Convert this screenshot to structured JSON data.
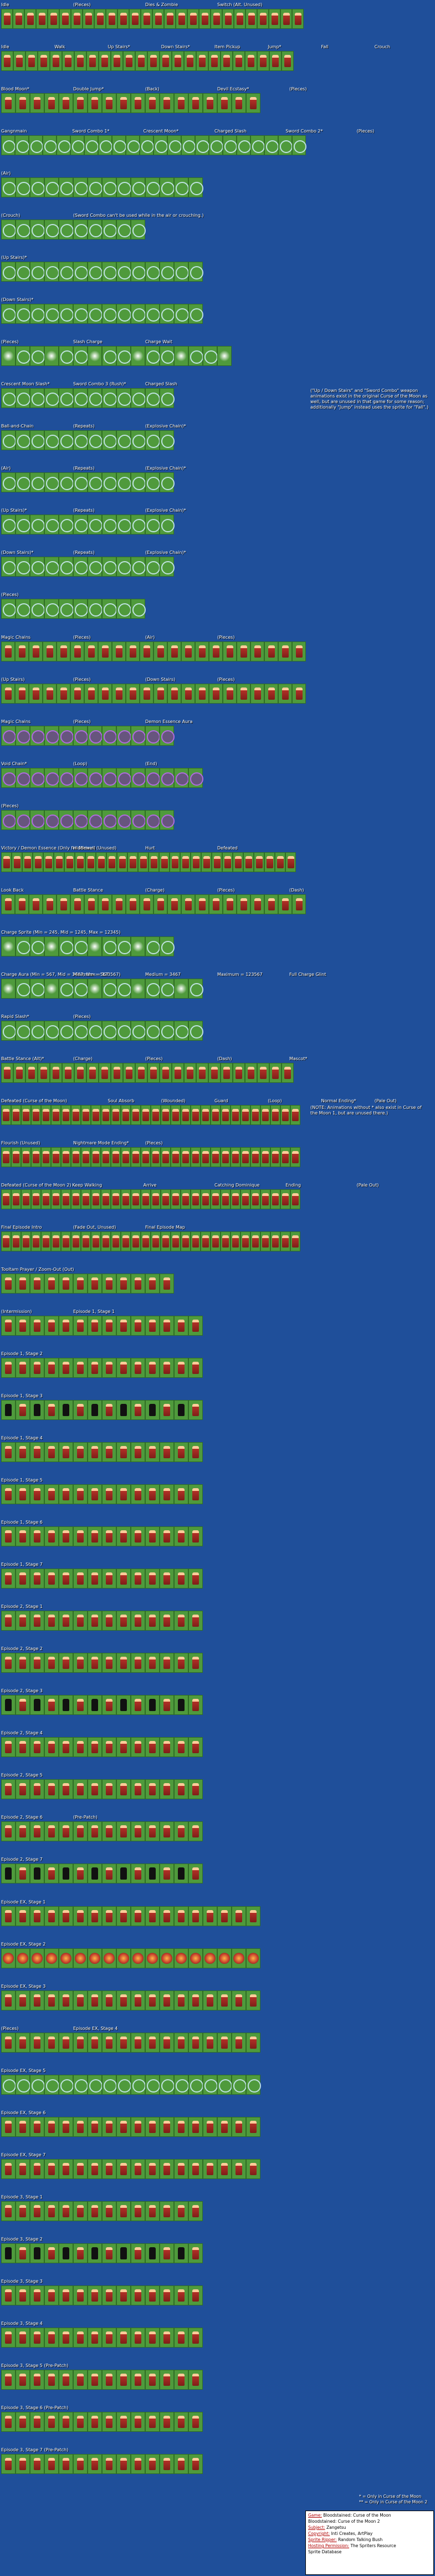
{
  "colors": {
    "background": "#1f4f9a",
    "cell": "#4f9a3c",
    "cell_border": "#2f6d24",
    "label": "#ffffff",
    "credits_key": "#b00000"
  },
  "sections": [
    {
      "labels": [
        "Idle",
        "(Pieces)",
        "Dies & Zombie",
        "Switch (Alt. Unused)"
      ],
      "cells": 26,
      "kind": "sprite"
    },
    {
      "labels": [
        "Idle",
        "Walk",
        "Up Stairs*",
        "Down Stairs*",
        "Item Pickup",
        "Jump*",
        "Fall",
        "Crouch"
      ],
      "cells": 24,
      "kind": "sprite"
    },
    {
      "labels": [
        "Blood Moon*",
        "Double Jump*",
        "(Back)",
        "Devil Ecstasy*",
        "(Pieces)"
      ],
      "cells": 18,
      "kind": "sprite"
    },
    {
      "labels": [
        "Gangnmain",
        "Sword Combo 1*",
        "Crescent Moon*",
        "Charged Slash",
        "Sword Combo 2*",
        "(Pieces)"
      ],
      "cells": 22,
      "kind": "slash"
    },
    {
      "labels": [
        "(Air)"
      ],
      "cells": 14,
      "kind": "slash"
    },
    {
      "labels": [
        "(Crouch)",
        "(Sword Combo can't be used while in the air or crouching.)"
      ],
      "cells": 10,
      "kind": "slash"
    },
    {
      "labels": [
        "(Up Stairs)*"
      ],
      "cells": 14,
      "kind": "slash"
    },
    {
      "labels": [
        "(Down Stairs)*"
      ],
      "cells": 14,
      "kind": "slash"
    },
    {
      "labels": [
        "(Pieces)",
        "Slash Charge",
        "Charge Wait"
      ],
      "cells": 16,
      "kind": "orb"
    },
    {
      "labels": [
        "Crescent Moon Slash*",
        "Sword Combo 3 (Rush)*",
        "Charged Slash",
        "(\"Up / Down Stairs\" and \"Sword Combo\" weapon animations exist in the original Curse of the Moon as well, but are unused in that game for some reason; additionally \"Jump\" instead uses the sprite for \"Fall\".)"
      ],
      "cells": 12,
      "kind": "slash"
    },
    {
      "labels": [
        "Ball-and-Chain",
        "(Repeats)",
        "(Explosive Chain)*"
      ],
      "cells": 12,
      "kind": "slash"
    },
    {
      "labels": [
        "(Air)",
        "(Repeats)",
        "(Explosive Chain)*"
      ],
      "cells": 12,
      "kind": "slash"
    },
    {
      "labels": [
        "(Up Stairs)*",
        "(Repeats)",
        "(Explosive Chain)*"
      ],
      "cells": 12,
      "kind": "slash"
    },
    {
      "labels": [
        "(Down Stairs)*",
        "(Repeats)",
        "(Explosive Chain)*"
      ],
      "cells": 12,
      "kind": "slash"
    },
    {
      "labels": [
        "(Pieces)"
      ],
      "cells": 10,
      "kind": "slash"
    },
    {
      "labels": [
        "Magic Chains",
        "(Pieces)",
        "(Air)",
        "(Pieces)"
      ],
      "cells": 22,
      "kind": "sprite"
    },
    {
      "labels": [
        "(Up Stairs)",
        "(Pieces)",
        "(Down Stairs)",
        "(Pieces)"
      ],
      "cells": 22,
      "kind": "sprite"
    },
    {
      "labels": [
        "Magic Chains",
        "(Pieces)",
        "Demon Essence Aura"
      ],
      "cells": 12,
      "kind": "purple"
    },
    {
      "labels": [
        "Void Chain*",
        "(Loop)",
        "(End)"
      ],
      "cells": 14,
      "kind": "purple"
    },
    {
      "labels": [
        "(Pieces)"
      ],
      "cells": 12,
      "kind": "purple"
    },
    {
      "labels": [
        "Victory / Demon Essence (Only for Miriam)",
        "Hiddewell (Unused)",
        "Hurt",
        "Defeated"
      ],
      "cells": 28,
      "kind": "sprite"
    },
    {
      "labels": [
        "Look Back",
        "Battle Stance",
        "(Charge)",
        "(Pieces)",
        "(Dash)"
      ],
      "cells": 22,
      "kind": "sprite"
    },
    {
      "labels": [
        "Charge Sprite (Min = 245, Mid = 1245, Max = 12345)"
      ],
      "cells": 12,
      "kind": "orb"
    },
    {
      "labels": [
        "Charge Aura (Min = 567, Mid = 3467, Max = 123567)",
        "Minimum = 567",
        "Medium = 3467",
        "Maximum = 123567",
        "Full Charge Glint"
      ],
      "cells": 14,
      "kind": "orb"
    },
    {
      "labels": [
        "Rapid Slash*",
        "(Pieces)"
      ],
      "cells": 14,
      "kind": "slash"
    },
    {
      "labels": [
        "Battle Stance (Alt)*",
        "(Charge)",
        "(Pieces)",
        "(Dash)",
        "Mascot*"
      ],
      "cells": 24,
      "kind": "sprite"
    },
    {
      "labels": [
        "Defeated (Curse of the Moon)",
        "(NOTE: Animations without * also exist in Curse of the Moon 1, but are unused there.)",
        "Soul Absorb",
        "(Wounded)",
        "Guard",
        "(Loop)",
        "Normal Ending*",
        "(Pale Out)"
      ],
      "cells": 30,
      "kind": "sprite"
    },
    {
      "labels": [
        "Flourish (Unused)",
        "Nightmare Mode Ending*",
        "(Pieces)"
      ],
      "cells": 30,
      "kind": "sprite"
    },
    {
      "labels": [
        "Defeated (Curse of the Moon 2)",
        "Keep Walking",
        "Arrive",
        "Catching Dominique",
        "Ending",
        "(Pale Out)"
      ],
      "cells": 30,
      "kind": "sprite"
    },
    {
      "labels": [
        "Final Episode Intro",
        "(Fade Out, Unused)",
        "Final Episode Map"
      ],
      "cells": 30,
      "kind": "sprite"
    },
    {
      "labels": [
        "Tooltam Prayer / Zoom-Out (Out)"
      ],
      "cells": 12,
      "kind": "sprite"
    },
    {
      "labels": [
        "(Intermission)",
        "Episode 1, Stage 1"
      ],
      "cells": 14,
      "kind": "sprite"
    },
    {
      "labels": [
        "Episode 1, Stage 2"
      ],
      "cells": 14,
      "kind": "sprite"
    },
    {
      "labels": [
        "Episode 1, Stage 3"
      ],
      "cells": 14,
      "kind": "shadow"
    },
    {
      "labels": [
        "Episode 1, Stage 4"
      ],
      "cells": 14,
      "kind": "sprite"
    },
    {
      "labels": [
        "Episode 1, Stage 5"
      ],
      "cells": 14,
      "kind": "sprite"
    },
    {
      "labels": [
        "Episode 1, Stage 6"
      ],
      "cells": 14,
      "kind": "sprite"
    },
    {
      "labels": [
        "Episode 1, Stage 7"
      ],
      "cells": 14,
      "kind": "sprite"
    },
    {
      "labels": [
        "Episode 2, Stage 1"
      ],
      "cells": 14,
      "kind": "sprite"
    },
    {
      "labels": [
        "Episode 2, Stage 2"
      ],
      "cells": 14,
      "kind": "sprite"
    },
    {
      "labels": [
        "Episode 2, Stage 3"
      ],
      "cells": 14,
      "kind": "shadow"
    },
    {
      "labels": [
        "Episode 2, Stage 4"
      ],
      "cells": 14,
      "kind": "sprite"
    },
    {
      "labels": [
        "Episode 2, Stage 5"
      ],
      "cells": 14,
      "kind": "sprite"
    },
    {
      "labels": [
        "Episode 2, Stage 6",
        "(Pre-Patch)"
      ],
      "cells": 14,
      "kind": "sprite"
    },
    {
      "labels": [
        "Episode 2, Stage 7"
      ],
      "cells": 14,
      "kind": "shadow"
    },
    {
      "labels": [
        "Episode EX, Stage 1"
      ],
      "cells": 18,
      "kind": "sprite"
    },
    {
      "labels": [
        "Episode EX, Stage 2"
      ],
      "cells": 18,
      "kind": "fire"
    },
    {
      "labels": [
        "Episode EX, Stage 3"
      ],
      "cells": 18,
      "kind": "sprite"
    },
    {
      "labels": [
        "(Pieces)",
        "Episode EX, Stage 4"
      ],
      "cells": 18,
      "kind": "sprite"
    },
    {
      "labels": [
        "Episode EX, Stage 5"
      ],
      "cells": 18,
      "kind": "slash"
    },
    {
      "labels": [
        "Episode EX, Stage 6"
      ],
      "cells": 18,
      "kind": "sprite"
    },
    {
      "labels": [
        "Episode EX, Stage 7"
      ],
      "cells": 18,
      "kind": "sprite"
    },
    {
      "labels": [
        "Episode 3, Stage 1"
      ],
      "cells": 14,
      "kind": "sprite"
    },
    {
      "labels": [
        "Episode 3, Stage 2"
      ],
      "cells": 14,
      "kind": "shadow"
    },
    {
      "labels": [
        "Episode 3, Stage 3"
      ],
      "cells": 14,
      "kind": "sprite"
    },
    {
      "labels": [
        "Episode 3, Stage 4"
      ],
      "cells": 14,
      "kind": "sprite"
    },
    {
      "labels": [
        "Episode 3, Stage 5 (Pre-Patch)"
      ],
      "cells": 14,
      "kind": "sprite"
    },
    {
      "labels": [
        "Episode 3, Stage 6 (Pre-Patch)"
      ],
      "cells": 14,
      "kind": "sprite"
    },
    {
      "labels": [
        "Episode 3, Stage 7 (Pre-Patch)"
      ],
      "cells": 14,
      "kind": "sprite"
    }
  ],
  "footnotes": [
    "* = Only in Curse of the Moon",
    "** = Only in Curse of the Moon 2"
  ],
  "credits": [
    {
      "key": "Game:",
      "value": "Bloodstained: Curse of the Moon"
    },
    {
      "key": "",
      "value": "Bloodstained: Curse of the Moon 2"
    },
    {
      "key": "Subject:",
      "value": "Zangetsu"
    },
    {
      "key": "Copyright:",
      "value": "Inti Creates, ArtPlay"
    },
    {
      "key": "Sprite Ripper:",
      "value": "Random Talking Bush"
    },
    {
      "key": "Hosting Permission:",
      "value": "The Spriters Resource"
    },
    {
      "key": "",
      "value": "Sprite Database"
    }
  ]
}
